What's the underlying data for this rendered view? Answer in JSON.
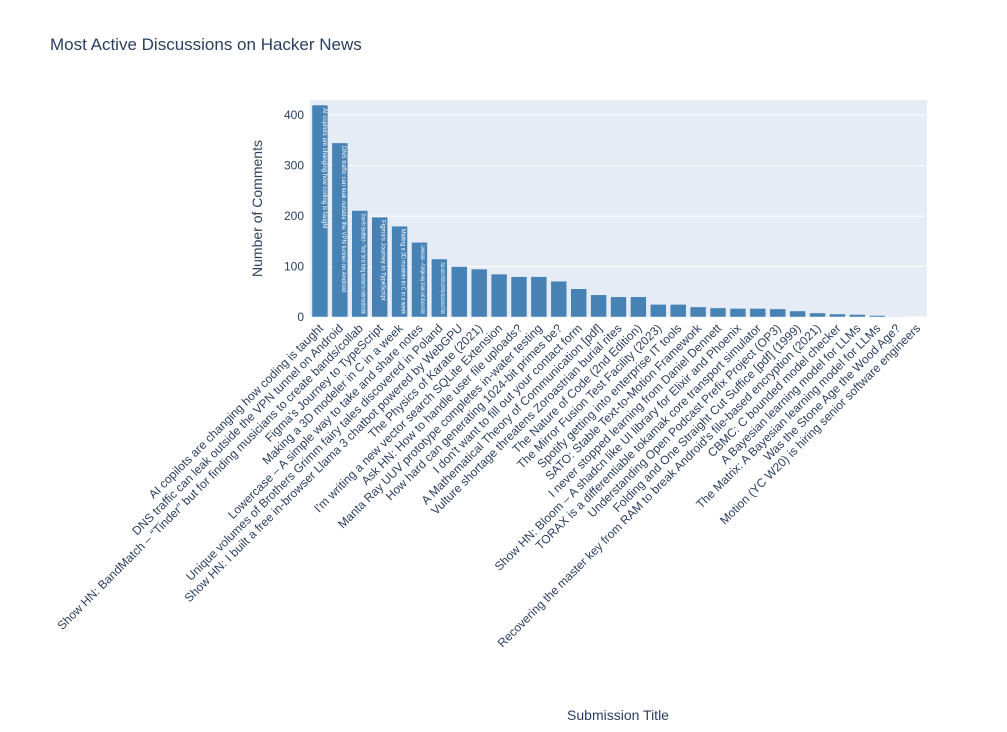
{
  "chart_data": {
    "type": "bar",
    "title": "Most Active Discussions on Hacker News",
    "xlabel": "Submission Title",
    "ylabel": "Number of Comments",
    "ylim": [
      0,
      430
    ],
    "yticks": [
      0,
      100,
      200,
      300,
      400
    ],
    "grid": true,
    "legend": "none",
    "colors": {
      "plot_bg": "#e5ecf6",
      "bar": "#4682b4",
      "text": "#2a3f5f",
      "grid": "#ffffff"
    },
    "categories": [
      "AI copilots are changing how coding is taught",
      "DNS traffic can leak outside the VPN tunnel on Android",
      "Show HN: BandMatch – “Tinder” but for finding musicians to create bands/collab",
      "Figma's Journey to TypeScript",
      "Making a 3D modeler in C in a week",
      "Lowercase – A simple way to take and share notes",
      "Unique volumes of Brothers Grimm fairy tales discovered in Poland",
      "Show HN: I built a free in-browser Llama 3 chatbot powered by WebGPU",
      "The Physics of Karate (2021)",
      "I'm writing a new vector search SQLite Extension",
      "Ask HN: How to handle user file uploads?",
      "Manta Ray UUV prototype completes in-water testing",
      "How hard can generating 1024-bit primes be?",
      "I don't want to fill out your contact form",
      "A Mathematical Theory of Communication [pdf]",
      "Vulture shortage threatens Zoroastrian burial rites",
      "The Nature of Code (2nd Edition)",
      "The Mirror Fusion Test Facility (2023)",
      "Spotify getting into enterprise IT tools",
      "SATO: Stable Text-to-Motion Framework",
      "I never stopped learning from Daniel Dennett",
      "Show HN: Bloom – A shadcn like UI library for Elixir and Phoenix",
      "TORAX is a differentiable tokamak core transport simulator",
      "Understanding Open Podcast Prefix Project (OP3)",
      "Folding and One Straight Cut Suffice [pdf] (1999)",
      "Recovering the master key from RAM to break Android's file-based encryption (2021)",
      "CBMC: C bounded model checker",
      "A Bayesian learning model for LLMs",
      "The Matrix: A Bayesian learning model for LLMs",
      "Was the Stone Age the Wood Age?",
      "Motion (YC W20) is hiring senior software engineers"
    ],
    "values": [
      420,
      345,
      211,
      198,
      180,
      148,
      115,
      100,
      95,
      85,
      80,
      80,
      71,
      56,
      44,
      40,
      40,
      25,
      25,
      20,
      18,
      17,
      17,
      16,
      12,
      8,
      6,
      5,
      3,
      1,
      0
    ],
    "bar_text_visible_count": 7
  }
}
